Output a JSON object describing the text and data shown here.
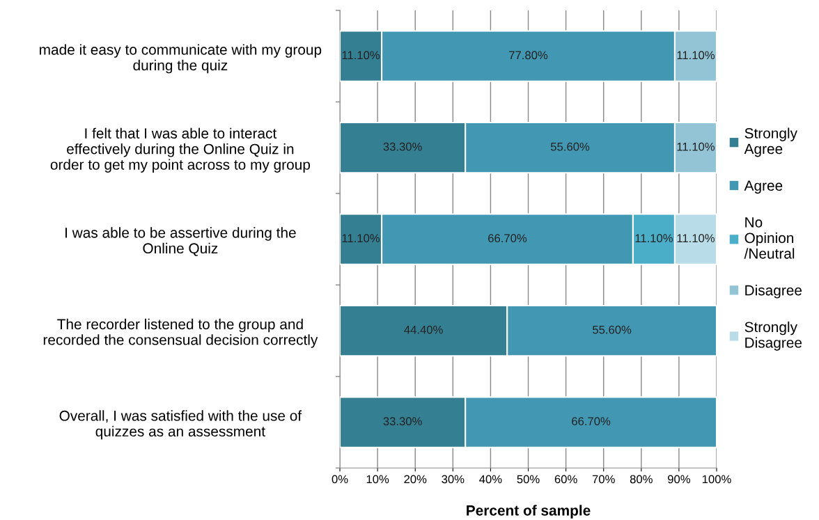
{
  "chart_data": {
    "type": "bar",
    "orientation": "horizontal",
    "stacked": true,
    "xlabel": "Percent of sample",
    "categories": [
      "made it easy to communicate with my group during the quiz",
      "I felt that I was able to interact effectively during the Online Quiz in order to get my point across to my group",
      "I was able to be assertive during the Online Quiz",
      "The recorder listened to the group and recorded the consensual decision correctly",
      "Overall, I was satisfied with the use of quizzes as an assessment"
    ],
    "series": [
      {
        "name": "Strongly Agree",
        "color": "#357f93",
        "values": [
          11.1,
          33.3,
          11.1,
          44.4,
          33.3
        ],
        "value_labels": [
          "11.10%",
          "33.30%",
          "11.10%",
          "44.40%",
          "33.30%"
        ]
      },
      {
        "name": "Agree",
        "color": "#4298b3",
        "values": [
          77.8,
          55.6,
          66.7,
          55.6,
          66.7
        ],
        "value_labels": [
          "77.80%",
          "55.60%",
          "66.70%",
          "55.60%",
          "66.70%"
        ]
      },
      {
        "name": "No Opinion /Neutral",
        "color": "#4aaec8",
        "values": [
          null,
          null,
          11.1,
          null,
          null
        ],
        "value_labels": [
          null,
          null,
          "11.10%",
          null,
          null
        ]
      },
      {
        "name": "Disagree",
        "color": "#93c4d6",
        "values": [
          11.1,
          11.1,
          null,
          null,
          null
        ],
        "value_labels": [
          "11.10%",
          "11.10%",
          null,
          null,
          null
        ]
      },
      {
        "name": "Strongly Disagree",
        "color": "#b9dde8",
        "values": [
          null,
          null,
          11.1,
          null,
          null
        ],
        "value_labels": [
          null,
          null,
          "11.10%",
          null,
          null
        ]
      }
    ],
    "xlim": [
      0,
      100
    ],
    "xticks": [
      {
        "value": 0,
        "label": "0%"
      },
      {
        "value": 10,
        "label": "10%"
      },
      {
        "value": 20,
        "label": "20%"
      },
      {
        "value": 30,
        "label": "30%"
      },
      {
        "value": 40,
        "label": "40%"
      },
      {
        "value": 50,
        "label": "50%"
      },
      {
        "value": 60,
        "label": "60%"
      },
      {
        "value": 70,
        "label": "70%"
      },
      {
        "value": 80,
        "label": "80%"
      },
      {
        "value": 90,
        "label": "90%"
      },
      {
        "value": 100,
        "label": "100%"
      }
    ],
    "grid": "x",
    "legend": "right"
  }
}
